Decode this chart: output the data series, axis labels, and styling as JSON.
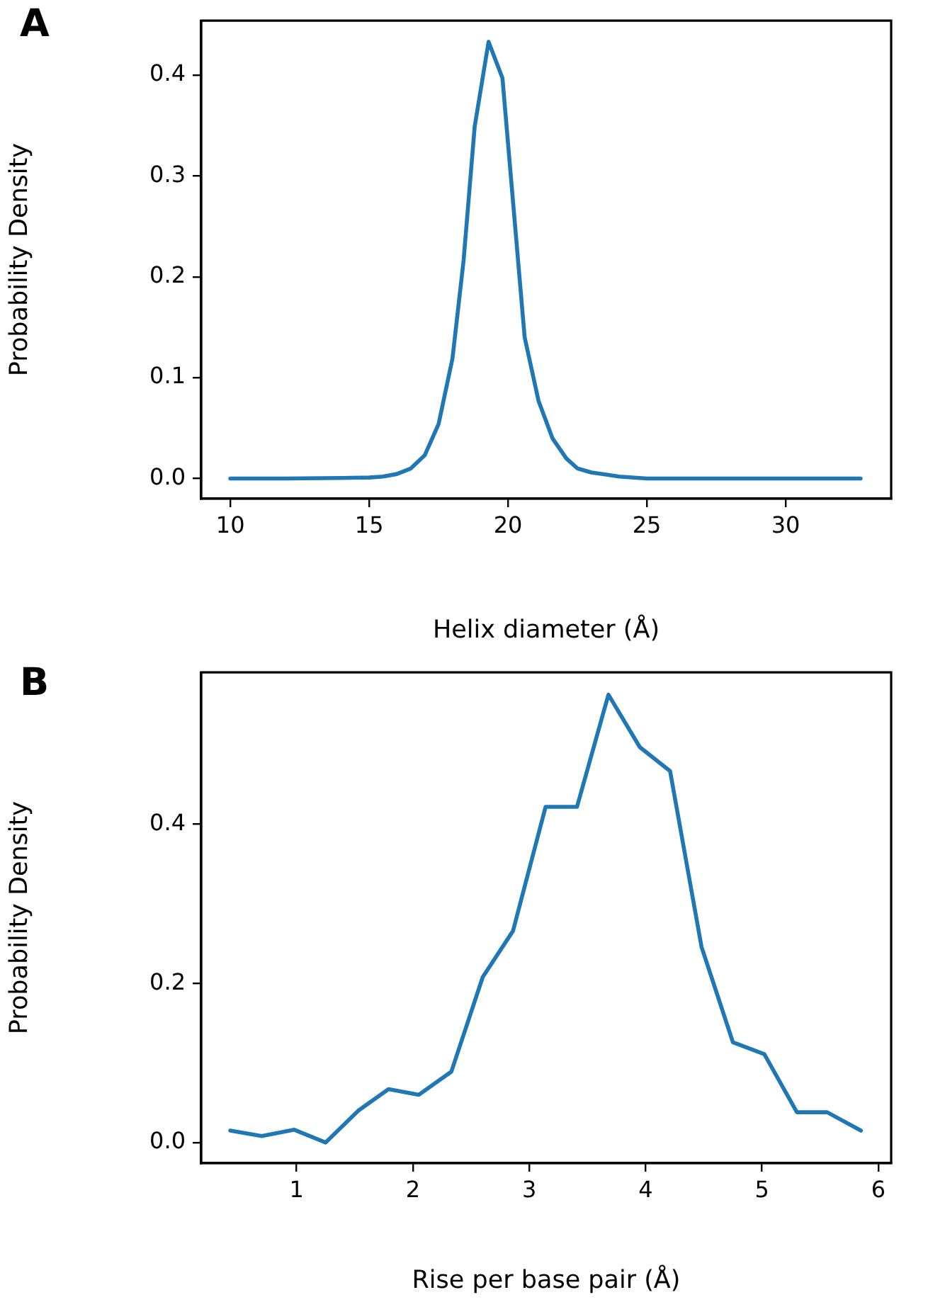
{
  "chart_data": [
    {
      "type": "line",
      "annotations": [
        "A"
      ],
      "xlabel": "Helix diameter (Å)",
      "ylabel": "Probability Density",
      "color": "#1f77b4",
      "marker": "none",
      "line_style": "solid",
      "grid": false,
      "legend": false,
      "x": [
        10,
        12,
        14,
        15,
        15.5,
        16,
        16.5,
        17,
        17.5,
        18,
        18.4,
        18.8,
        19.3,
        19.8,
        20.6,
        21.1,
        21.6,
        22.1,
        22.5,
        23,
        23.5,
        24,
        25,
        28,
        32.7
      ],
      "values": [
        0,
        0,
        0.0005,
        0.001,
        0.002,
        0.0045,
        0.01,
        0.023,
        0.054,
        0.119,
        0.216,
        0.349,
        0.433,
        0.397,
        0.14,
        0.077,
        0.04,
        0.02,
        0.01,
        0.006,
        0.004,
        0.002,
        0,
        0,
        0
      ],
      "xlim": [
        8.95,
        33.8
      ],
      "ylim": [
        -0.02,
        0.454
      ],
      "xticks": [
        10,
        15,
        20,
        25,
        30
      ],
      "yticks": [
        {
          "value": 0,
          "label": "0.0"
        },
        {
          "value": 0.1,
          "label": "0.1"
        },
        {
          "value": 0.2,
          "label": "0.2"
        },
        {
          "value": 0.3,
          "label": "0.3"
        },
        {
          "value": 0.4,
          "label": "0.4"
        }
      ]
    },
    {
      "type": "line",
      "annotations": [
        "B"
      ],
      "xlabel": "Rise per base pair (Å)",
      "ylabel": "Probability Density",
      "color": "#1f77b4",
      "marker": "none",
      "line_style": "solid",
      "grid": false,
      "legend": false,
      "x": [
        0.43,
        0.7,
        0.98,
        1.25,
        1.53,
        1.79,
        2.05,
        2.33,
        2.6,
        2.86,
        3.14,
        3.41,
        3.68,
        3.95,
        4.21,
        4.48,
        4.75,
        5.02,
        5.3,
        5.56,
        5.85
      ],
      "values": [
        0.015,
        0.008,
        0.016,
        0.0,
        0.04,
        0.067,
        0.06,
        0.089,
        0.208,
        0.266,
        0.422,
        0.422,
        0.563,
        0.497,
        0.467,
        0.246,
        0.126,
        0.111,
        0.038,
        0.038,
        0.015
      ],
      "xlim": [
        0.18,
        6.11
      ],
      "ylim": [
        -0.026,
        0.591
      ],
      "xticks": [
        1,
        2,
        3,
        4,
        5,
        6
      ],
      "yticks": [
        {
          "value": 0,
          "label": "0.0"
        },
        {
          "value": 0.2,
          "label": "0.2"
        },
        {
          "value": 0.4,
          "label": "0.4"
        }
      ]
    }
  ]
}
